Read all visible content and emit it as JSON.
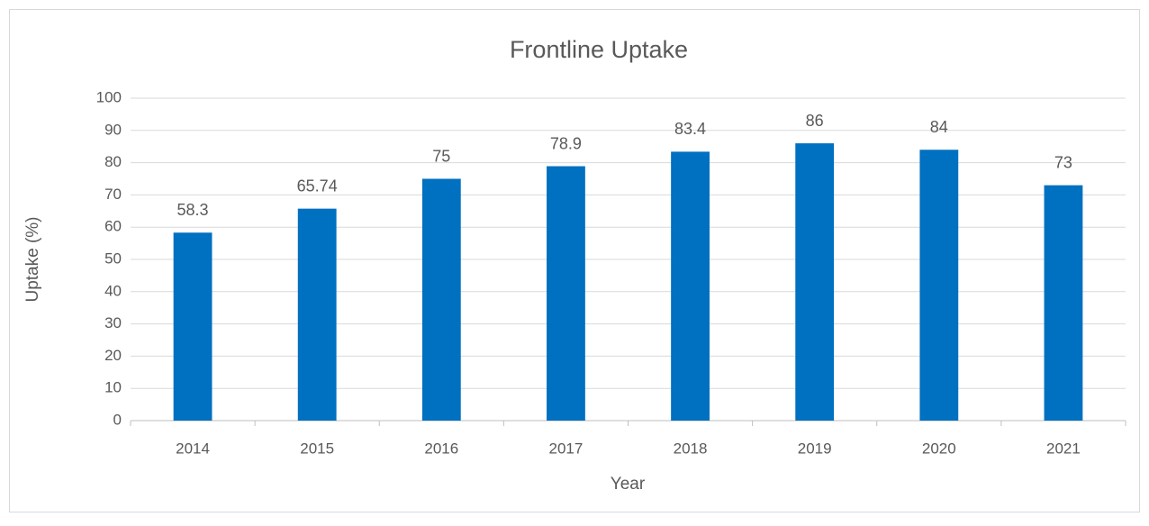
{
  "chart_data": {
    "type": "bar",
    "title": "Frontline Uptake",
    "x_label": "Year",
    "y_label": "Uptake (%)",
    "categories": [
      "2014",
      "2015",
      "2016",
      "2017",
      "2018",
      "2019",
      "2020",
      "2021"
    ],
    "values": [
      58.3,
      65.74,
      75,
      78.9,
      83.4,
      86,
      84,
      73
    ],
    "color": "#0070c0",
    "ylim": [
      0,
      100
    ],
    "yticks": [
      0,
      10,
      20,
      30,
      40,
      50,
      60,
      70,
      80,
      90,
      100
    ],
    "grid": true
  }
}
